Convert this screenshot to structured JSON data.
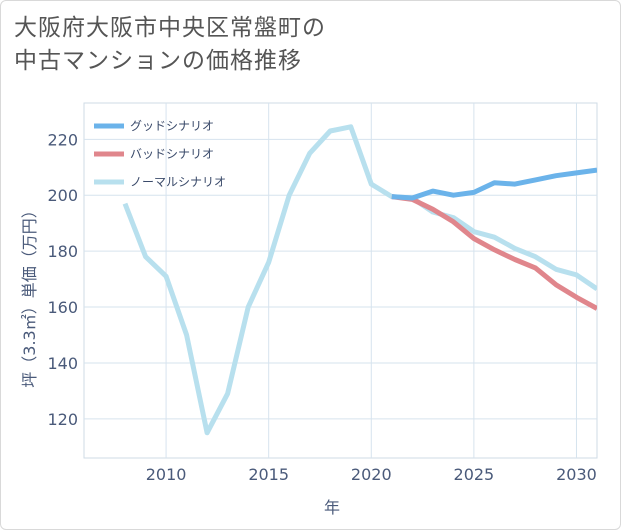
{
  "title_lines": [
    "大阪府大阪市中央区常盤町の",
    "中古マンションの価格推移"
  ],
  "chart_data": {
    "type": "line",
    "title": "大阪府大阪市中央区常盤町の中古マンションの価格推移",
    "xlabel": "年",
    "ylabel": "坪（3.3㎡）単価（万円）",
    "xlim": [
      2006,
      2031
    ],
    "ylim": [
      106,
      233
    ],
    "xticks": [
      2010,
      2015,
      2020,
      2025,
      2030
    ],
    "yticks": [
      120,
      140,
      160,
      180,
      200,
      220
    ],
    "grid": true,
    "legend_position": "top-left",
    "series": [
      {
        "name": "グッドシナリオ",
        "color": "#6bb3ea",
        "x": [
          2021,
          2022,
          2023,
          2024,
          2025,
          2026,
          2027,
          2028,
          2029,
          2030,
          2031
        ],
        "values": [
          199.5,
          199,
          201.5,
          200,
          201,
          204.5,
          204,
          205.5,
          207,
          208,
          209
        ]
      },
      {
        "name": "バッドシナリオ",
        "color": "#e0868c",
        "x": [
          2021,
          2022,
          2023,
          2024,
          2025,
          2026,
          2027,
          2028,
          2029,
          2030,
          2031
        ],
        "values": [
          199.5,
          198.5,
          195,
          190.5,
          184.5,
          180.5,
          177,
          174,
          168,
          163.5,
          159.5
        ]
      },
      {
        "name": "ノーマルシナリオ",
        "color": "#b8e0ee",
        "x": [
          2008,
          2009,
          2010,
          2011,
          2012,
          2013,
          2014,
          2015,
          2016,
          2017,
          2018,
          2019,
          2020,
          2021,
          2022,
          2023,
          2024,
          2025,
          2026,
          2027,
          2028,
          2029,
          2030,
          2031
        ],
        "values": [
          197,
          178,
          171,
          150,
          115,
          129,
          160,
          176,
          200,
          215,
          223,
          224.5,
          204,
          199.5,
          199,
          194,
          192,
          187,
          185,
          181,
          178,
          173.5,
          171.5,
          166.5
        ]
      }
    ]
  }
}
